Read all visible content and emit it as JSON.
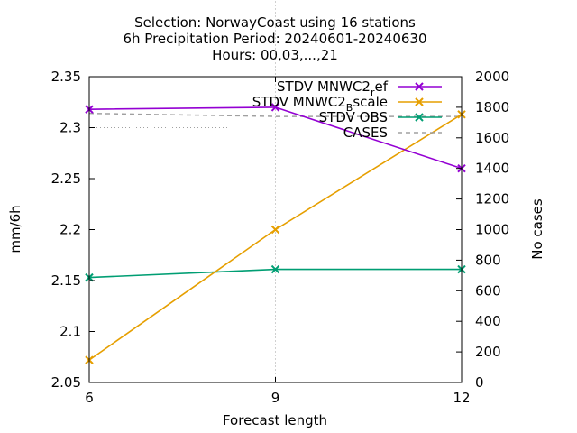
{
  "chart_data": {
    "type": "line",
    "title_lines": [
      "Selection: NorwayCoast using    16 stations",
      "6h Precipitation   Period: 20240601-20240630",
      "Hours: 00,03,...,21"
    ],
    "xlabel": "Forecast length",
    "ylabel": "mm/6h",
    "y2label": "No cases",
    "x": [
      6,
      9,
      12
    ],
    "xlim": [
      6,
      12
    ],
    "ylim": [
      2.05,
      2.35
    ],
    "y2lim": [
      0,
      2000
    ],
    "xticks": [
      "6",
      "9",
      "12"
    ],
    "yticks": [
      "2.05",
      "2.1",
      "2.15",
      "2.2",
      "2.25",
      "2.3",
      "2.35"
    ],
    "y2ticks": [
      "0",
      "200",
      "400",
      "600",
      "800",
      "1000",
      "1200",
      "1400",
      "1600",
      "1800",
      "2000"
    ],
    "grid": "dotted, partial",
    "legend_position": "top-right",
    "series": [
      {
        "name": "STDV MNWC2_ref",
        "label_main": "STDV MNWC2",
        "label_sub": "r",
        "label_tail": "ef",
        "axis": "y",
        "color": "#9400d3",
        "marker": "x",
        "values": [
          2.318,
          2.32,
          2.26
        ]
      },
      {
        "name": "STDV MNWC2_Bscale",
        "label_main": "STDV MNWC2",
        "label_sub": "B",
        "label_tail": "scale",
        "axis": "y",
        "color": "#e69f00",
        "marker": "x",
        "values": [
          2.072,
          2.2,
          2.313
        ]
      },
      {
        "name": "STDV OBS",
        "label_main": "STDV OBS",
        "label_sub": "",
        "label_tail": "",
        "axis": "y",
        "color": "#009e73",
        "marker": "x",
        "values": [
          2.153,
          2.161,
          2.161
        ]
      },
      {
        "name": "CASES",
        "label_main": "CASES",
        "label_sub": "",
        "label_tail": "",
        "axis": "y2",
        "color": "#a0a0a0",
        "marker": "none",
        "dashed": true,
        "values": [
          1760,
          1740,
          1740
        ]
      }
    ]
  }
}
